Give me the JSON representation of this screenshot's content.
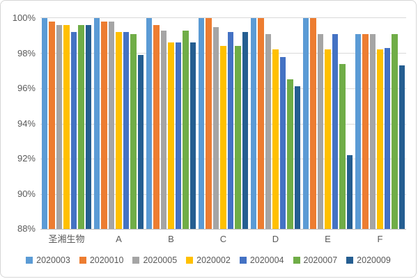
{
  "chart_data": {
    "type": "bar",
    "title": "",
    "categories": [
      "圣湘生物",
      "A",
      "B",
      "C",
      "D",
      "E",
      "F"
    ],
    "series": [
      {
        "name": "2020003",
        "color": "#5B9BD5",
        "values": [
          100,
          100,
          100,
          100,
          100,
          100,
          99.1
        ]
      },
      {
        "name": "2020010",
        "color": "#ED7D31",
        "values": [
          99.8,
          99.8,
          99.6,
          100,
          100,
          100,
          99.1
        ]
      },
      {
        "name": "2020005",
        "color": "#A5A5A5",
        "values": [
          99.6,
          99.8,
          99.3,
          99.5,
          99.1,
          99.1,
          99.1
        ]
      },
      {
        "name": "2020002",
        "color": "#FFC000",
        "values": [
          99.6,
          99.2,
          98.6,
          98.4,
          98.2,
          98.2,
          98.2
        ]
      },
      {
        "name": "2020004",
        "color": "#4472C4",
        "values": [
          99.2,
          99.2,
          98.6,
          99.2,
          97.8,
          99.1,
          98.3
        ]
      },
      {
        "name": "2020007",
        "color": "#70AD47",
        "values": [
          99.6,
          99.1,
          99.3,
          98.4,
          96.5,
          97.4,
          99.1
        ]
      },
      {
        "name": "2020009",
        "color": "#255E91",
        "values": [
          99.6,
          97.9,
          98.6,
          99.2,
          96.1,
          92.2,
          97.3
        ]
      }
    ],
    "xlabel": "",
    "ylabel": "",
    "ylim": [
      88,
      100
    ],
    "yticks": [
      {
        "label": "100%",
        "value": 100
      },
      {
        "label": "98%",
        "value": 98
      },
      {
        "label": "96%",
        "value": 96
      },
      {
        "label": "94%",
        "value": 94
      },
      {
        "label": "92%",
        "value": 92
      },
      {
        "label": "90%",
        "value": 90
      },
      {
        "label": "88%",
        "value": 88
      }
    ],
    "grid": true,
    "legend_position": "bottom"
  },
  "colors": {
    "gridline": "#D9D9D9",
    "axis_line": "#BFBFBF",
    "label_text": "#595959",
    "frame_border": "#D6D6D6",
    "background": "#FFFFFF"
  }
}
